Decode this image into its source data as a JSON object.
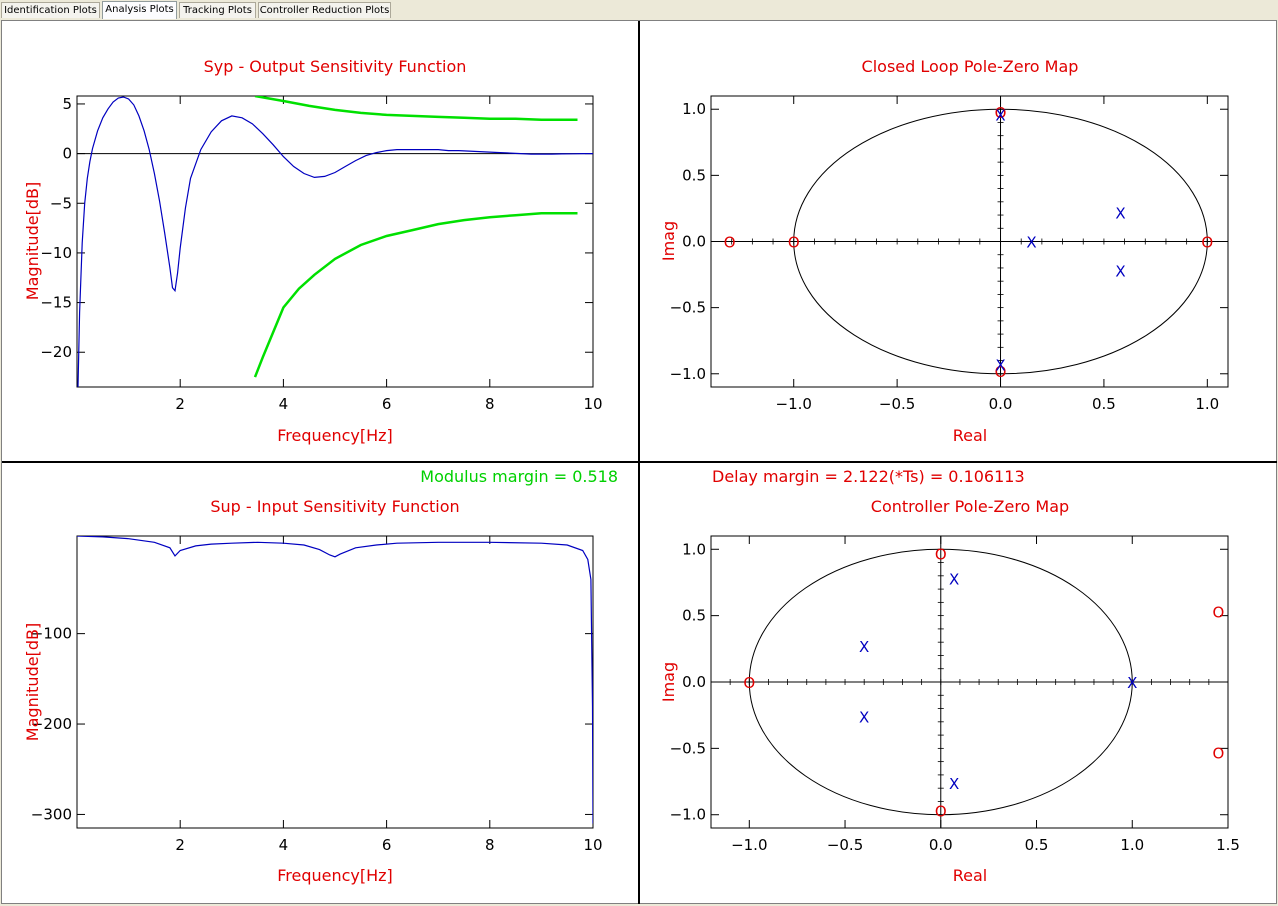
{
  "tabs": [
    {
      "label": "Identification Plots",
      "active": false
    },
    {
      "label": "Analysis Plots",
      "active": true
    },
    {
      "label": "Tracking Plots",
      "active": false
    },
    {
      "label": "Controller Reduction Plots",
      "active": false
    }
  ],
  "colors": {
    "title": "#e00000",
    "axis": "#000000",
    "curve": "#0000c0",
    "template": "#00e000",
    "zero": "#e00000",
    "pole": "#0000c0",
    "margin_modulus": "#00d000",
    "margin_delay": "#e00000"
  },
  "panels": {
    "syp": {
      "title": "Syp - Output Sensitivity Function",
      "xlabel": "Frequency[Hz]",
      "ylabel": "Magnitude[dB]",
      "note": "Modulus margin = 0.518"
    },
    "sup": {
      "title": "Sup - Input Sensitivity Function",
      "xlabel": "Frequency[Hz]",
      "ylabel": "Magnitude[dB]"
    },
    "clpz": {
      "title": "Closed Loop Pole-Zero Map",
      "xlabel": "Real",
      "ylabel": "Imag",
      "note": "Delay margin = 2.122(*Ts) = 0.106113"
    },
    "ctrlpz": {
      "title": "Controller Pole-Zero Map",
      "xlabel": "Real",
      "ylabel": "Imag"
    }
  },
  "chart_data": [
    {
      "id": "syp",
      "type": "line",
      "title": "Syp - Output Sensitivity Function",
      "xlabel": "Frequency[Hz]",
      "ylabel": "Magnitude[dB]",
      "xlim": [
        0,
        10
      ],
      "ylim": [
        -23.5,
        5.8
      ],
      "xticks": [
        2,
        4,
        6,
        8,
        10
      ],
      "yticks": [
        5,
        0,
        -5,
        -10,
        -15,
        -20
      ],
      "hline": 0,
      "series": [
        {
          "role": "curve",
          "x": [
            0.02,
            0.05,
            0.1,
            0.15,
            0.2,
            0.25,
            0.3,
            0.4,
            0.5,
            0.6,
            0.7,
            0.8,
            0.9,
            1.0,
            1.1,
            1.2,
            1.3,
            1.4,
            1.5,
            1.6,
            1.7,
            1.8,
            1.85,
            1.9,
            1.95,
            2.0,
            2.1,
            2.2,
            2.4,
            2.6,
            2.8,
            3.0,
            3.2,
            3.4,
            3.6,
            3.8,
            4.0,
            4.2,
            4.4,
            4.6,
            4.8,
            5.0,
            5.2,
            5.4,
            5.6,
            5.8,
            6.0,
            6.2,
            6.4,
            6.6,
            6.8,
            7.0,
            7.2,
            7.4,
            7.6,
            7.8,
            8.0,
            8.2,
            8.4,
            8.6,
            8.8,
            9.0,
            9.2,
            9.4,
            9.6,
            9.8,
            10.0
          ],
          "y": [
            -23.5,
            -16.0,
            -9.0,
            -5.0,
            -2.5,
            -0.8,
            0.5,
            2.3,
            3.6,
            4.5,
            5.2,
            5.6,
            5.7,
            5.5,
            4.9,
            3.8,
            2.3,
            0.4,
            -2.0,
            -4.8,
            -8.0,
            -11.5,
            -13.5,
            -13.8,
            -12.0,
            -9.5,
            -5.5,
            -2.5,
            0.4,
            2.2,
            3.3,
            3.8,
            3.6,
            3.0,
            2.0,
            0.9,
            -0.3,
            -1.3,
            -2.0,
            -2.4,
            -2.3,
            -1.9,
            -1.3,
            -0.7,
            -0.2,
            0.1,
            0.3,
            0.4,
            0.4,
            0.4,
            0.4,
            0.4,
            0.3,
            0.3,
            0.25,
            0.2,
            0.15,
            0.1,
            0.05,
            0.0,
            -0.05,
            -0.05,
            -0.05,
            -0.03,
            -0.02,
            0.0,
            0.0
          ]
        },
        {
          "role": "template-upper",
          "x": [
            3.45,
            4.0,
            4.5,
            5.0,
            5.5,
            6.0,
            6.5,
            7.0,
            7.5,
            8.0,
            8.5,
            9.0,
            9.5,
            9.7
          ],
          "y": [
            5.8,
            5.3,
            4.8,
            4.4,
            4.1,
            3.9,
            3.8,
            3.7,
            3.6,
            3.5,
            3.5,
            3.4,
            3.4,
            3.4
          ]
        },
        {
          "role": "template-lower",
          "x": [
            3.45,
            3.6,
            3.8,
            4.0,
            4.3,
            4.6,
            5.0,
            5.5,
            6.0,
            6.5,
            7.0,
            7.5,
            8.0,
            8.5,
            9.0,
            9.5,
            9.7
          ],
          "y": [
            -22.5,
            -20.5,
            -18.0,
            -15.5,
            -13.6,
            -12.2,
            -10.6,
            -9.2,
            -8.3,
            -7.7,
            -7.1,
            -6.7,
            -6.4,
            -6.2,
            -6.0,
            -6.0,
            -6.0
          ]
        }
      ]
    },
    {
      "id": "sup",
      "type": "line",
      "title": "Sup - Input Sensitivity Function",
      "xlabel": "Frequency[Hz]",
      "ylabel": "Magnitude[dB]",
      "xlim": [
        0,
        10
      ],
      "ylim": [
        -315,
        8
      ],
      "xticks": [
        2,
        4,
        6,
        8,
        10
      ],
      "yticks": [
        -100,
        -200,
        -300
      ],
      "series": [
        {
          "role": "curve",
          "x": [
            0,
            0.5,
            1.0,
            1.5,
            1.8,
            1.9,
            2.0,
            2.3,
            2.6,
            3.0,
            3.5,
            4.0,
            4.4,
            4.7,
            4.9,
            5.0,
            5.1,
            5.4,
            5.8,
            6.2,
            7.0,
            8.0,
            9.0,
            9.5,
            9.8,
            9.9,
            9.96,
            9.99,
            10.0
          ],
          "y": [
            8,
            7,
            5,
            1,
            -5,
            -14,
            -8,
            -3,
            -1,
            0,
            1,
            0,
            -2,
            -7,
            -13,
            -15,
            -12,
            -5,
            -2,
            0,
            1,
            1,
            0,
            -2,
            -8,
            -18,
            -40,
            -180,
            -310
          ]
        }
      ]
    },
    {
      "id": "clpz",
      "type": "scatter",
      "title": "Closed Loop Pole-Zero Map",
      "xlabel": "Real",
      "ylabel": "Imag",
      "xlim": [
        -1.4,
        1.1
      ],
      "ylim": [
        -1.1,
        1.1
      ],
      "xticks": [
        -1.0,
        -0.5,
        0.0,
        0.5,
        1.0
      ],
      "yticks": [
        1.0,
        0.5,
        0.0,
        -0.5,
        -1.0
      ],
      "unit_circle": true,
      "zeros": [
        [
          -1.31,
          0.0
        ],
        [
          -1.0,
          0.0
        ],
        [
          1.0,
          0.0
        ],
        [
          0.0,
          0.98
        ],
        [
          0.0,
          -0.98
        ]
      ],
      "poles": [
        [
          0.0,
          0.96
        ],
        [
          0.0,
          -0.93
        ],
        [
          0.15,
          0.0
        ],
        [
          0.58,
          0.22
        ],
        [
          0.58,
          -0.22
        ]
      ]
    },
    {
      "id": "ctrlpz",
      "type": "scatter",
      "title": "Controller Pole-Zero Map",
      "xlabel": "Real",
      "ylabel": "Imag",
      "xlim": [
        -1.2,
        1.5
      ],
      "ylim": [
        -1.1,
        1.1
      ],
      "xticks": [
        -1.0,
        -0.5,
        0.0,
        0.5,
        1.0,
        1.5
      ],
      "yticks": [
        1.0,
        0.5,
        0.0,
        -0.5,
        -1.0
      ],
      "unit_circle": true,
      "zeros": [
        [
          -1.0,
          0.0
        ],
        [
          0.0,
          0.97
        ],
        [
          0.0,
          -0.97
        ],
        [
          1.45,
          0.53
        ],
        [
          1.45,
          -0.53
        ]
      ],
      "poles": [
        [
          0.07,
          0.78
        ],
        [
          0.07,
          -0.76
        ],
        [
          -0.4,
          0.27
        ],
        [
          -0.4,
          -0.26
        ],
        [
          1.0,
          0.0
        ]
      ]
    }
  ]
}
